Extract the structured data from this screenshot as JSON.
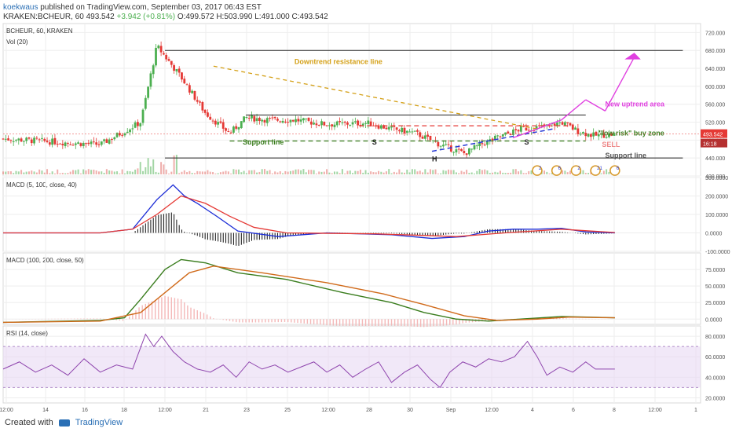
{
  "header": {
    "author": "koekwaus",
    "published": "published on TradingView.com, September 03, 2017 06:43 EST",
    "symbol": "KRAKEN:BCHEUR, 60",
    "last": "493.542",
    "change": "+3.942 (+0.81%)",
    "open": "O:499.572",
    "high": "H:503.990",
    "low": "L:491.000",
    "close": "C:493.542"
  },
  "footer": {
    "created": "Created with",
    "brand": "TradingView"
  },
  "colors": {
    "up": "#4caf50",
    "down": "#e53935",
    "grid": "#eeeeee",
    "annot_orange": "#d4a017",
    "annot_green": "#3a7d1e",
    "annot_magenta": "#e040e0",
    "annot_blue": "#2a3bd6"
  },
  "chart_data": [
    {
      "type": "candlestick",
      "title": "BCHEUR, 60, KRAKEN",
      "volume_label": "Vol (20)",
      "ylim": [
        400,
        740
      ],
      "y_ticks": [
        "720.000",
        "680.000",
        "640.000",
        "600.000",
        "560.000",
        "520.000",
        "480.000",
        "440.000",
        "400.000"
      ],
      "y_tick_values": [
        720,
        680,
        640,
        600,
        560,
        520,
        480,
        440,
        400
      ],
      "last_price": "493.542",
      "countdown": "16:18",
      "x_ticks": [
        "12:00",
        "14",
        "16",
        "18",
        "12:00",
        "21",
        "23",
        "25",
        "12:00",
        "28",
        "30",
        "Sep",
        "12:00",
        "4",
        "6",
        "8",
        "12:00",
        "1"
      ],
      "close_path": [
        [
          0,
          483
        ],
        [
          60,
          470
        ],
        [
          85,
          520
        ],
        [
          95,
          690
        ],
        [
          110,
          620
        ],
        [
          125,
          540
        ],
        [
          140,
          495
        ],
        [
          150,
          530
        ],
        [
          165,
          525
        ],
        [
          180,
          525
        ],
        [
          200,
          515
        ],
        [
          225,
          518
        ],
        [
          240,
          505
        ],
        [
          255,
          495
        ],
        [
          270,
          470
        ],
        [
          285,
          450
        ],
        [
          295,
          470
        ],
        [
          305,
          485
        ],
        [
          320,
          505
        ],
        [
          335,
          510
        ],
        [
          345,
          520
        ],
        [
          355,
          500
        ],
        [
          365,
          490
        ],
        [
          378,
          493
        ]
      ],
      "annotations": [
        {
          "text": "Downtrend resistance line"
        },
        {
          "text": "Support line"
        },
        {
          "text": "S"
        },
        {
          "text": "H"
        },
        {
          "text": "S"
        },
        {
          "text": "New uptrend area"
        },
        {
          "text": "\"low risk\" buy zone"
        },
        {
          "text": "SELL"
        },
        {
          "text": "Support line"
        }
      ],
      "event_icons": [
        "2",
        "6",
        "2",
        "21",
        "6"
      ]
    },
    {
      "type": "line",
      "title": "MACD (5, 100, close, 40)",
      "ylim": [
        -100,
        300
      ],
      "y_ticks": [
        "300.0000",
        "200.0000",
        "100.0000",
        "0.0000",
        "-100.0000"
      ],
      "y_tick_values": [
        300,
        200,
        100,
        0,
        -100
      ],
      "series": [
        {
          "name": "MACD",
          "color": "#1a2bd6",
          "points": [
            [
              0,
              0
            ],
            [
              60,
              0
            ],
            [
              80,
              20
            ],
            [
              95,
              180
            ],
            [
              105,
              260
            ],
            [
              112,
              200
            ],
            [
              120,
              160
            ],
            [
              132,
              90
            ],
            [
              145,
              10
            ],
            [
              170,
              -20
            ],
            [
              200,
              0
            ],
            [
              240,
              -10
            ],
            [
              265,
              -30
            ],
            [
              285,
              -20
            ],
            [
              300,
              10
            ],
            [
              315,
              20
            ],
            [
              330,
              20
            ],
            [
              345,
              25
            ],
            [
              360,
              5
            ],
            [
              378,
              0
            ]
          ]
        },
        {
          "name": "Signal",
          "color": "#e53935",
          "points": [
            [
              0,
              0
            ],
            [
              60,
              0
            ],
            [
              80,
              20
            ],
            [
              95,
              100
            ],
            [
              110,
              200
            ],
            [
              125,
              160
            ],
            [
              140,
              90
            ],
            [
              155,
              30
            ],
            [
              175,
              0
            ],
            [
              230,
              -5
            ],
            [
              280,
              -20
            ],
            [
              310,
              0
            ],
            [
              345,
              20
            ],
            [
              378,
              2
            ]
          ]
        }
      ]
    },
    {
      "type": "line",
      "title": "MACD (100, 200, close, 50)",
      "ylim": [
        -8,
        100
      ],
      "y_ticks": [
        "75.0000",
        "50.0000",
        "25.0000",
        "0.0000"
      ],
      "y_tick_values": [
        75,
        50,
        25,
        0
      ],
      "series": [
        {
          "name": "MACD",
          "color": "#3a7d1e",
          "points": [
            [
              0,
              -5
            ],
            [
              60,
              -2
            ],
            [
              75,
              2
            ],
            [
              85,
              30
            ],
            [
              100,
              75
            ],
            [
              110,
              90
            ],
            [
              125,
              85
            ],
            [
              145,
              70
            ],
            [
              175,
              60
            ],
            [
              210,
              40
            ],
            [
              240,
              25
            ],
            [
              260,
              10
            ],
            [
              280,
              0
            ],
            [
              300,
              -3
            ],
            [
              320,
              0
            ],
            [
              345,
              4
            ],
            [
              378,
              2
            ]
          ]
        },
        {
          "name": "Signal",
          "color": "#d06a1a",
          "points": [
            [
              0,
              -5
            ],
            [
              60,
              -3
            ],
            [
              85,
              10
            ],
            [
              100,
              40
            ],
            [
              115,
              70
            ],
            [
              130,
              80
            ],
            [
              160,
              70
            ],
            [
              200,
              55
            ],
            [
              235,
              38
            ],
            [
              260,
              22
            ],
            [
              285,
              5
            ],
            [
              305,
              -2
            ],
            [
              330,
              0
            ],
            [
              350,
              3
            ],
            [
              378,
              2
            ]
          ]
        }
      ]
    },
    {
      "type": "line",
      "title": "RSI (14, close)",
      "ylim": [
        15,
        90
      ],
      "y_ticks": [
        "80.0000",
        "60.0000",
        "40.0000",
        "20.0000"
      ],
      "y_tick_values": [
        80,
        60,
        40,
        20
      ],
      "band": [
        30,
        70
      ],
      "series": [
        {
          "name": "RSI",
          "color": "#8e44ad",
          "points": [
            [
              0,
              48
            ],
            [
              10,
              55
            ],
            [
              20,
              45
            ],
            [
              30,
              52
            ],
            [
              40,
              42
            ],
            [
              50,
              58
            ],
            [
              60,
              45
            ],
            [
              70,
              52
            ],
            [
              80,
              48
            ],
            [
              88,
              82
            ],
            [
              93,
              70
            ],
            [
              98,
              80
            ],
            [
              105,
              65
            ],
            [
              112,
              55
            ],
            [
              120,
              48
            ],
            [
              128,
              45
            ],
            [
              136,
              52
            ],
            [
              144,
              40
            ],
            [
              152,
              55
            ],
            [
              160,
              48
            ],
            [
              168,
              52
            ],
            [
              176,
              45
            ],
            [
              184,
              50
            ],
            [
              192,
              55
            ],
            [
              200,
              45
            ],
            [
              208,
              52
            ],
            [
              216,
              40
            ],
            [
              224,
              48
            ],
            [
              232,
              55
            ],
            [
              240,
              35
            ],
            [
              248,
              45
            ],
            [
              256,
              52
            ],
            [
              264,
              38
            ],
            [
              270,
              30
            ],
            [
              276,
              45
            ],
            [
              284,
              55
            ],
            [
              292,
              50
            ],
            [
              300,
              58
            ],
            [
              308,
              55
            ],
            [
              316,
              60
            ],
            [
              324,
              75
            ],
            [
              330,
              60
            ],
            [
              336,
              42
            ],
            [
              344,
              50
            ],
            [
              352,
              45
            ],
            [
              360,
              55
            ],
            [
              366,
              48
            ],
            [
              378,
              48
            ]
          ]
        }
      ]
    }
  ]
}
